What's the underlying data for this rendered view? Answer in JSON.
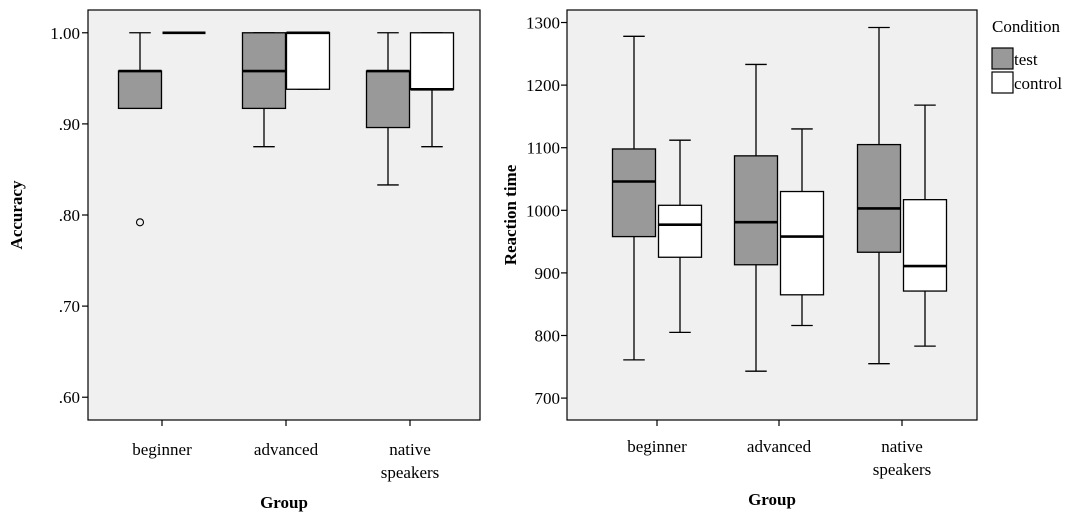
{
  "legend": {
    "title": "Condition",
    "entries": [
      {
        "label": "test",
        "color": "#999999"
      },
      {
        "label": "control",
        "color": "#ffffff"
      }
    ]
  },
  "chart_data": [
    {
      "type": "boxplot",
      "xlabel": "Group",
      "ylabel": "Accuracy",
      "ylim": [
        0.575,
        1.025
      ],
      "yticks": [
        {
          "value": 0.6,
          "label": ".60"
        },
        {
          "value": 0.7,
          "label": ".70"
        },
        {
          "value": 0.8,
          "label": ".80"
        },
        {
          "value": 0.9,
          "label": ".90"
        },
        {
          "value": 1.0,
          "label": "1.00"
        }
      ],
      "categories": [
        {
          "lines": [
            "beginner"
          ]
        },
        {
          "lines": [
            "advanced"
          ]
        },
        {
          "lines": [
            "native",
            "speakers"
          ]
        }
      ],
      "grid": false,
      "series": [
        {
          "name": "test",
          "color": "#999999",
          "boxes": [
            {
              "min": 0.917,
              "q1": 0.917,
              "median": 0.958,
              "q3": 0.958,
              "max": 1.0,
              "outliers": [
                0.792
              ]
            },
            {
              "min": 0.875,
              "q1": 0.917,
              "median": 0.958,
              "q3": 1.0,
              "max": 1.0,
              "outliers": []
            },
            {
              "min": 0.833,
              "q1": 0.896,
              "median": 0.958,
              "q3": 0.958,
              "max": 1.0,
              "outliers": []
            }
          ]
        },
        {
          "name": "control",
          "color": "#ffffff",
          "boxes": [
            {
              "min": 1.0,
              "q1": 1.0,
              "median": 1.0,
              "q3": 1.0,
              "max": 1.0,
              "outliers": []
            },
            {
              "min": 0.938,
              "q1": 0.938,
              "median": 1.0,
              "q3": 1.0,
              "max": 1.0,
              "outliers": []
            },
            {
              "min": 0.875,
              "q1": 0.938,
              "median": 0.938,
              "q3": 1.0,
              "max": 1.0,
              "outliers": []
            }
          ]
        }
      ]
    },
    {
      "type": "boxplot",
      "xlabel": "Group",
      "ylabel": "Reaction time",
      "ylim": [
        665,
        1320
      ],
      "yticks": [
        {
          "value": 700,
          "label": "700"
        },
        {
          "value": 800,
          "label": "800"
        },
        {
          "value": 900,
          "label": "900"
        },
        {
          "value": 1000,
          "label": "1000"
        },
        {
          "value": 1100,
          "label": "1100"
        },
        {
          "value": 1200,
          "label": "1200"
        },
        {
          "value": 1300,
          "label": "1300"
        }
      ],
      "categories": [
        {
          "lines": [
            "beginner"
          ]
        },
        {
          "lines": [
            "advanced"
          ]
        },
        {
          "lines": [
            "native",
            "speakers"
          ]
        }
      ],
      "grid": false,
      "series": [
        {
          "name": "test",
          "color": "#999999",
          "boxes": [
            {
              "min": 761,
              "q1": 958,
              "median": 1046,
              "q3": 1098,
              "max": 1278,
              "outliers": []
            },
            {
              "min": 743,
              "q1": 913,
              "median": 981,
              "q3": 1087,
              "max": 1233,
              "outliers": []
            },
            {
              "min": 755,
              "q1": 933,
              "median": 1003,
              "q3": 1105,
              "max": 1292,
              "outliers": []
            }
          ]
        },
        {
          "name": "control",
          "color": "#ffffff",
          "boxes": [
            {
              "min": 805,
              "q1": 925,
              "median": 977,
              "q3": 1008,
              "max": 1112,
              "outliers": []
            },
            {
              "min": 816,
              "q1": 865,
              "median": 958,
              "q3": 1030,
              "max": 1130,
              "outliers": []
            },
            {
              "min": 783,
              "q1": 871,
              "median": 911,
              "q3": 1017,
              "max": 1168,
              "outliers": []
            }
          ]
        }
      ]
    }
  ]
}
